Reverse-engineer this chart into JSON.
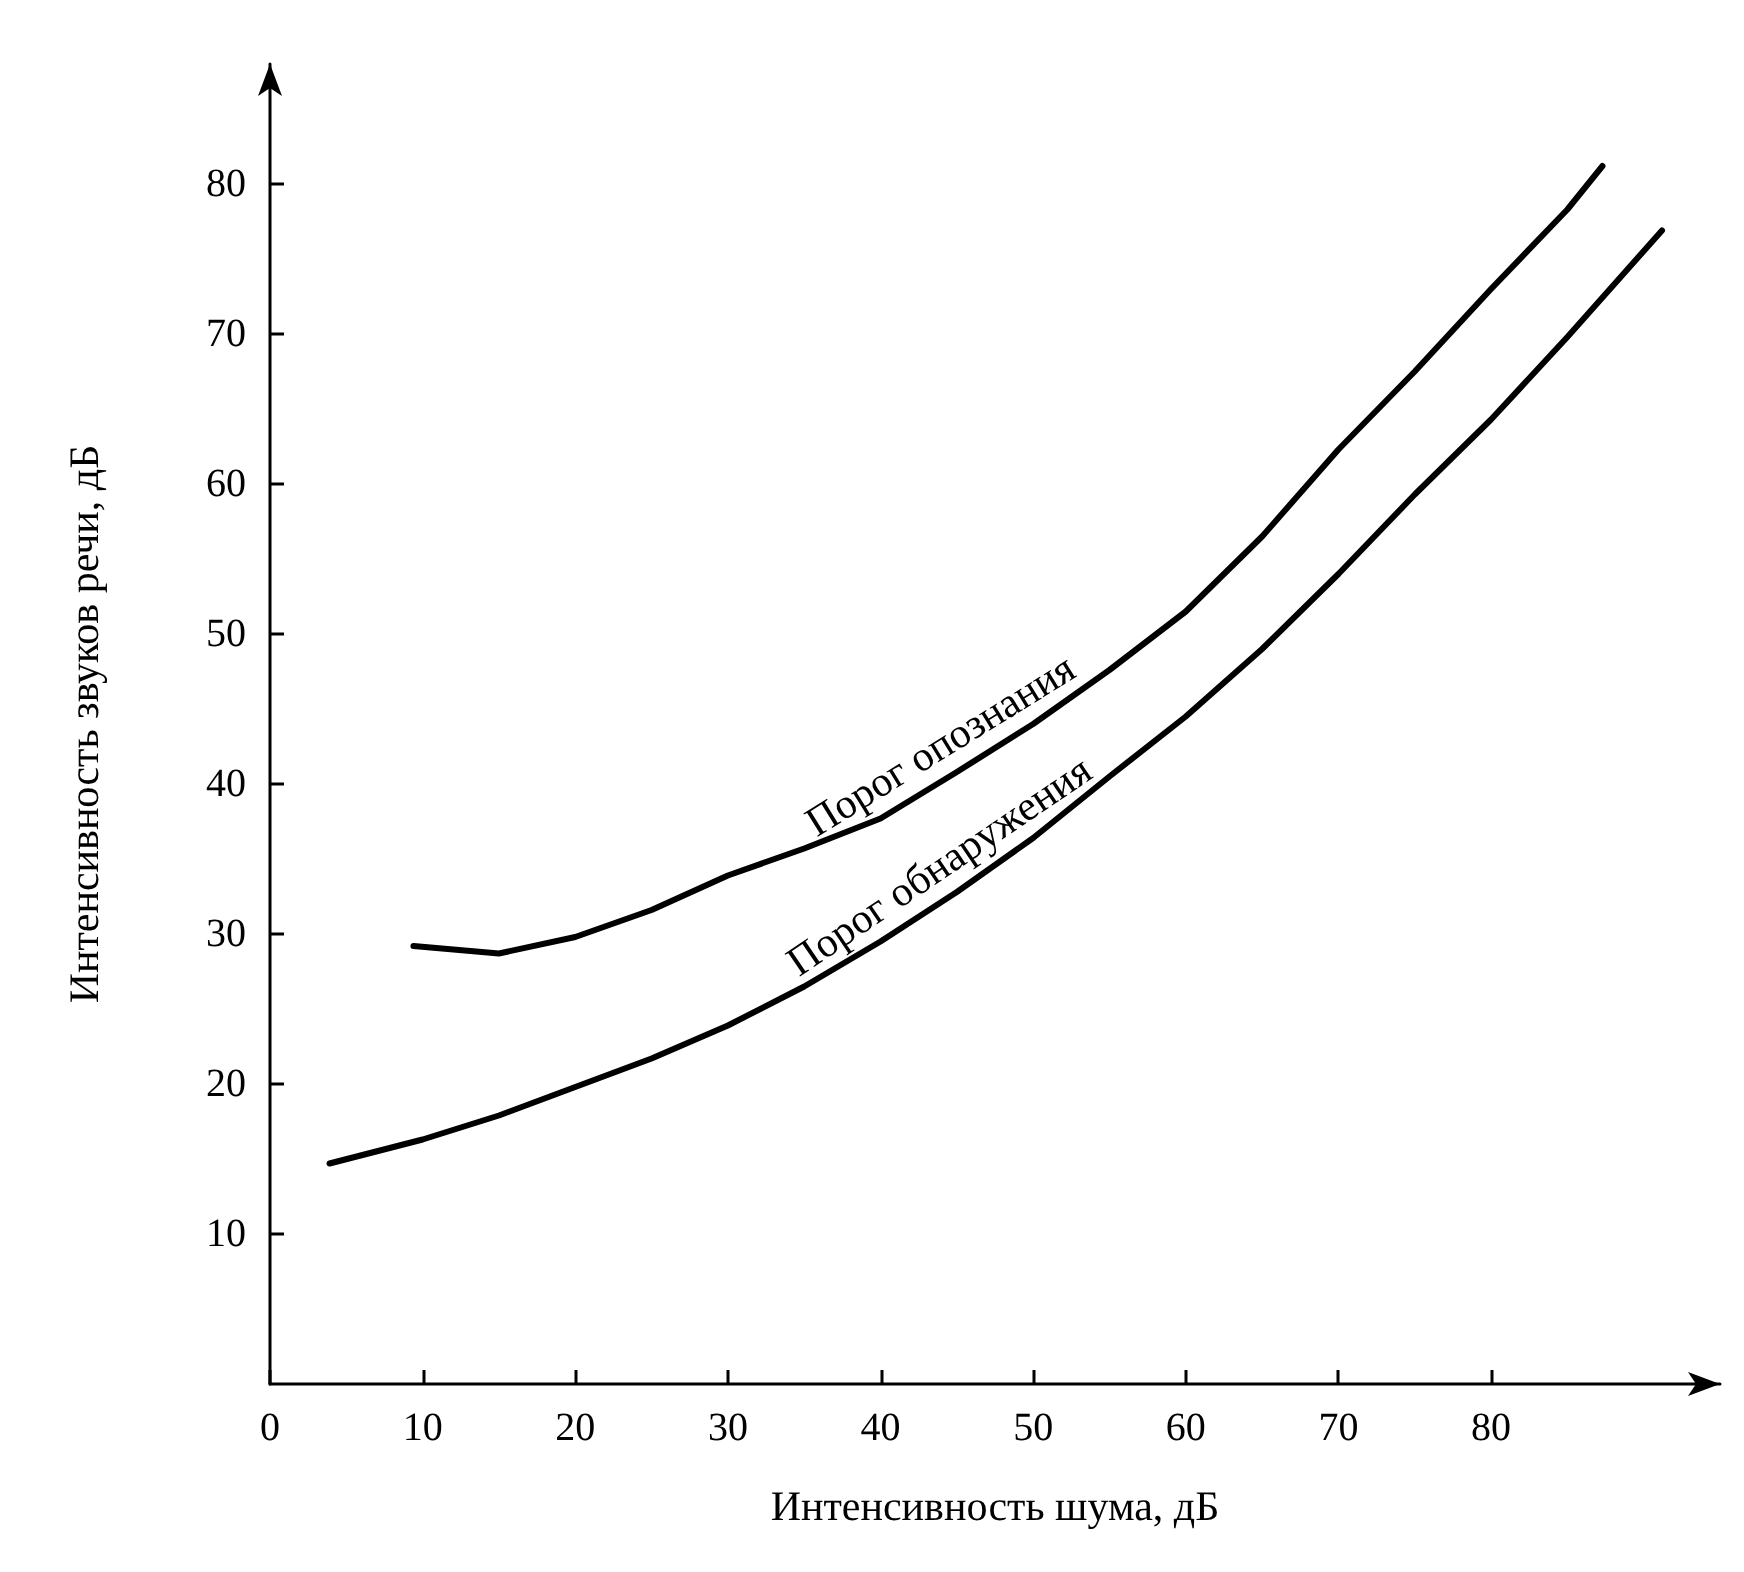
{
  "chart_data": {
    "type": "line",
    "xlabel": "Интенсивность шума, дБ",
    "ylabel": "Интенсивность звуков речи, дБ",
    "xlim": [
      0,
      95
    ],
    "ylim": [
      0,
      88
    ],
    "xticks": [
      0,
      10,
      20,
      30,
      40,
      50,
      60,
      70,
      80
    ],
    "yticks": [
      10,
      20,
      30,
      40,
      50,
      60,
      70,
      80
    ],
    "grid": false,
    "legend": false,
    "marker": "none",
    "line_style": "solid",
    "series": [
      {
        "name": "Порог опознания",
        "color": "#000000",
        "x": [
          9.4,
          15,
          20,
          25,
          30,
          35,
          40,
          45,
          50,
          55,
          60,
          65,
          70,
          75,
          80,
          85,
          87.3
        ],
        "values": [
          29.2,
          28.7,
          29.8,
          31.6,
          33.9,
          35.7,
          37.7,
          40.8,
          44,
          47.6,
          51.5,
          56.5,
          62.3,
          67.5,
          73,
          78.3,
          81.2
        ]
      },
      {
        "name": "Порог обнаружения",
        "color": "#000000",
        "x": [
          3.9,
          10,
          15,
          20,
          25,
          30,
          35,
          40,
          45,
          50,
          55,
          60,
          65,
          70,
          75,
          80,
          85,
          91.2
        ],
        "values": [
          14.7,
          16.3,
          17.9,
          19.8,
          21.7,
          23.9,
          26.5,
          29.5,
          32.8,
          36.4,
          40.5,
          44.5,
          49,
          54,
          59.3,
          64.3,
          69.8,
          76.9
        ]
      }
    ]
  }
}
